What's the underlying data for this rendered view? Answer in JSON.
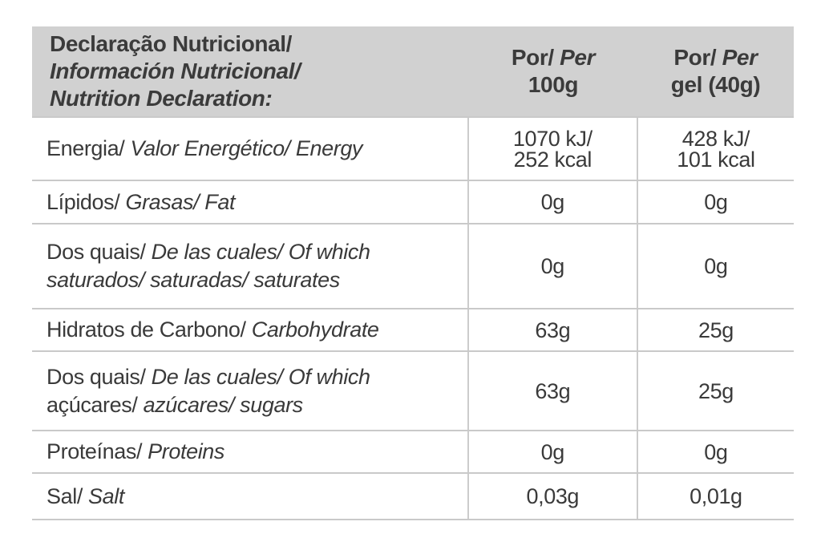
{
  "colors": {
    "header_bg": "#d1d1d1",
    "text": "#3a3a3a",
    "grid_line": "#c9c9c9",
    "page_bg": "#ffffff"
  },
  "header": {
    "title_lines": [
      [
        {
          "t": "Declaração Nutricional/",
          "i": false
        }
      ],
      [
        {
          "t": "Información Nutricional/",
          "i": true
        }
      ],
      [
        {
          "t": "Nutrition Declaration:",
          "i": true
        }
      ]
    ],
    "col_per_100g_lines": [
      [
        {
          "t": "Por/ ",
          "i": false
        },
        {
          "t": "Per",
          "i": true
        }
      ],
      [
        {
          "t": "100g",
          "i": false
        }
      ]
    ],
    "col_per_gel_lines": [
      [
        {
          "t": "Por/ ",
          "i": false
        },
        {
          "t": "Per",
          "i": true
        }
      ],
      [
        {
          "t": "gel (40g)",
          "i": false
        }
      ]
    ]
  },
  "rows": [
    {
      "name": "energy",
      "label_lines": [
        [
          {
            "t": "Energia/ ",
            "i": false
          },
          {
            "t": "Valor Energético/ Energy",
            "i": true
          }
        ]
      ],
      "per_100g": [
        "1070 kJ/",
        "252 kcal"
      ],
      "per_gel": [
        "428 kJ/",
        "101 kcal"
      ]
    },
    {
      "name": "fat",
      "label_lines": [
        [
          {
            "t": "Lípidos/ ",
            "i": false
          },
          {
            "t": "Grasas/ Fat",
            "i": true
          }
        ]
      ],
      "per_100g": [
        "0g"
      ],
      "per_gel": [
        "0g"
      ]
    },
    {
      "name": "saturates",
      "label_lines": [
        [
          {
            "t": "Dos quais/ ",
            "i": false
          },
          {
            "t": "De las cuales/ Of which",
            "i": true
          }
        ],
        [
          {
            "t": "saturados/ saturadas/ saturates",
            "i": true
          }
        ]
      ],
      "per_100g": [
        "0g"
      ],
      "per_gel": [
        "0g"
      ]
    },
    {
      "name": "carbohydrate",
      "label_lines": [
        [
          {
            "t": "Hidratos de Carbono/ ",
            "i": false
          },
          {
            "t": "Carbohydrate",
            "i": true
          }
        ]
      ],
      "per_100g": [
        "63g"
      ],
      "per_gel": [
        "25g"
      ]
    },
    {
      "name": "sugars",
      "label_lines": [
        [
          {
            "t": "Dos quais/ ",
            "i": false
          },
          {
            "t": "De las cuales/ Of which",
            "i": true
          }
        ],
        [
          {
            "t": "açúcares/ ",
            "i": false
          },
          {
            "t": "azúcares/ sugars",
            "i": true
          }
        ]
      ],
      "per_100g": [
        "63g"
      ],
      "per_gel": [
        "25g"
      ]
    },
    {
      "name": "proteins",
      "label_lines": [
        [
          {
            "t": "Proteínas/ ",
            "i": false
          },
          {
            "t": "Proteins",
            "i": true
          }
        ]
      ],
      "per_100g": [
        "0g"
      ],
      "per_gel": [
        "0g"
      ]
    },
    {
      "name": "salt",
      "label_lines": [
        [
          {
            "t": "Sal/ ",
            "i": false
          },
          {
            "t": "Salt",
            "i": true
          }
        ]
      ],
      "per_100g": [
        "0,03g"
      ],
      "per_gel": [
        "0,01g"
      ]
    }
  ]
}
